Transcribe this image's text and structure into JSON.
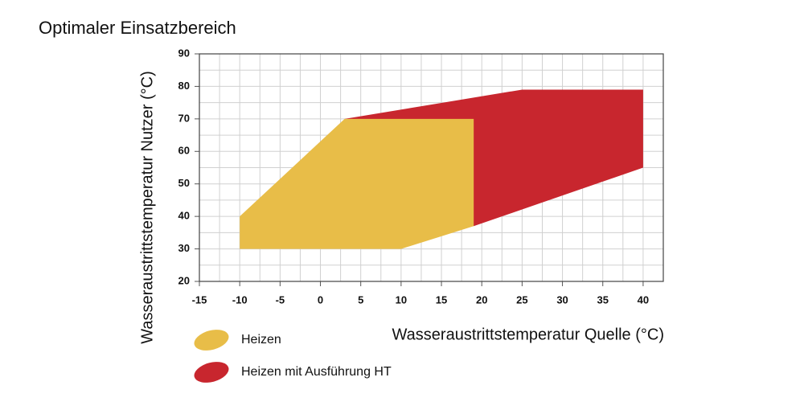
{
  "chart_data": {
    "type": "polygon",
    "title": "Optimaler Einsatzbereich",
    "x_label": "Wasseraustrittstemperatur Quelle (°C)",
    "y_label": "Wasseraustrittstemperatur Nutzer (°C)",
    "xlim": [
      -15,
      42.5
    ],
    "ylim": [
      20,
      90
    ],
    "xticks": [
      -15,
      -10,
      -5,
      0,
      5,
      10,
      15,
      20,
      25,
      30,
      35,
      40
    ],
    "yticks": [
      20,
      30,
      40,
      50,
      60,
      70,
      80,
      90
    ],
    "grid": true,
    "series": [
      {
        "name": "Heizen mit Ausführung HT",
        "color": "#c8262e",
        "x": [
          3,
          25,
          40,
          40,
          19
        ],
        "y": [
          70,
          79,
          79,
          55,
          37
        ]
      },
      {
        "name": "Heizen",
        "color": "#e8bd48",
        "x": [
          -10,
          -10,
          3,
          19,
          19,
          10
        ],
        "y": [
          30,
          40,
          70,
          70,
          37,
          30
        ]
      }
    ],
    "legend_order": [
      1,
      0
    ]
  }
}
